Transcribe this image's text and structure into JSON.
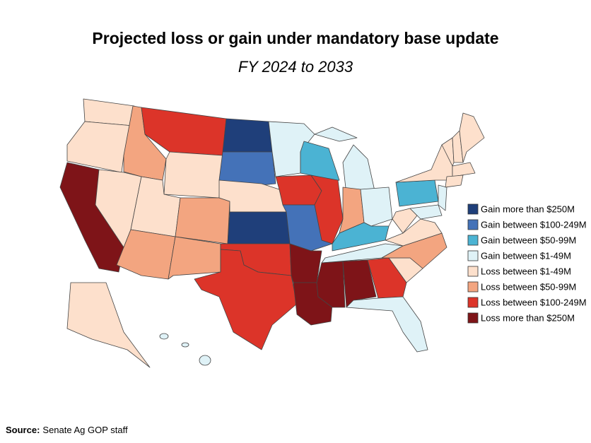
{
  "title": "Projected loss or gain under mandatory base update",
  "subtitle": "FY 2024 to 2033",
  "legend": [
    {
      "label": "Gain more than $250M",
      "color": "#1f3f7a"
    },
    {
      "label": "Gain between $100-249M",
      "color": "#4472b8"
    },
    {
      "label": "Gain between $50-99M",
      "color": "#4bb3d3"
    },
    {
      "label": "Gain between $1-49M",
      "color": "#dff2f7"
    },
    {
      "label": "Loss between $1-49M",
      "color": "#fde0cc"
    },
    {
      "label": "Loss between $50-99M",
      "color": "#f3a580"
    },
    {
      "label": "Loss between $100-249M",
      "color": "#dc3429"
    },
    {
      "label": "Loss more than $250M",
      "color": "#7e1418"
    }
  ],
  "source": {
    "label": "Source:",
    "text": "Senate Ag GOP staff"
  }
}
